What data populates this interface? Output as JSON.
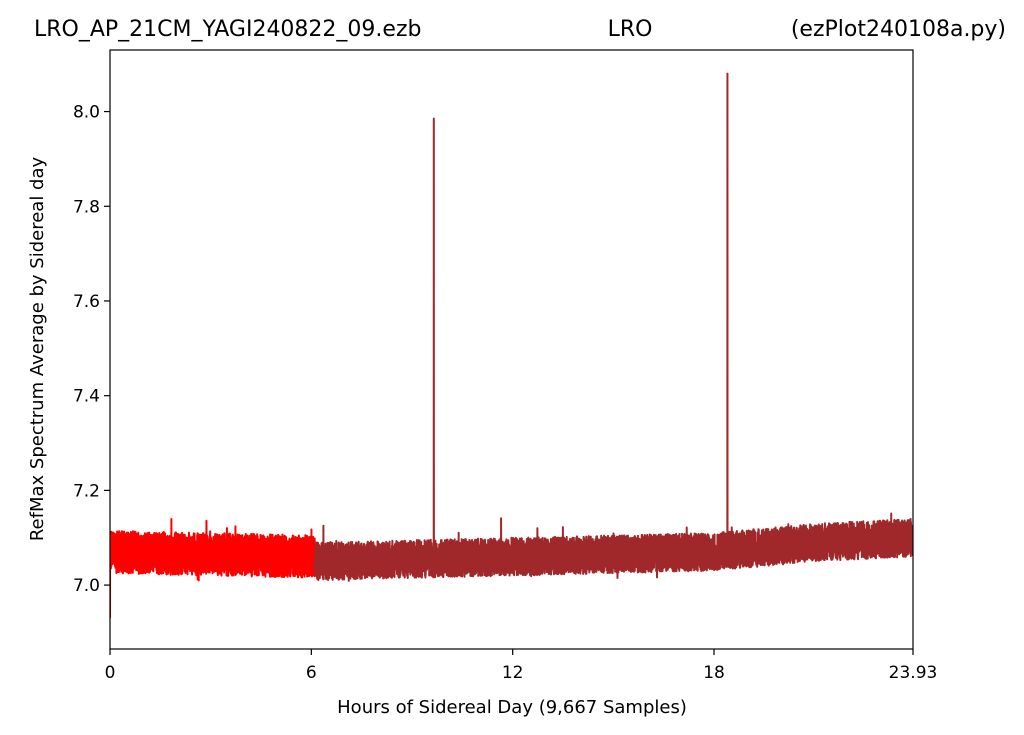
{
  "chart_data": {
    "type": "line",
    "title_parts": {
      "left": "LRO_AP_21CM_YAGI240822_09.ezb",
      "center": "LRO",
      "right": "(ezPlot240108a.py)"
    },
    "xlabel": "Hours of Sidereal Day  (9,667 Samples)",
    "ylabel": "RefMax Spectrum Average by Sidereal day",
    "xlim": [
      0,
      23.93
    ],
    "ylim": [
      6.865,
      8.13
    ],
    "x_ticks": [
      0,
      6,
      12,
      18,
      23.93
    ],
    "x_tick_labels": [
      "0",
      "6",
      "12",
      "18",
      "23.93"
    ],
    "y_ticks": [
      7.0,
      7.2,
      7.4,
      7.6,
      7.8,
      8.0
    ],
    "y_tick_labels": [
      "7.0",
      "7.2",
      "7.4",
      "7.6",
      "7.8",
      "8.0"
    ],
    "grid": false,
    "series": [
      {
        "color": "#ff0000",
        "x_range": [
          0,
          6.1
        ],
        "baseline": [
          [
            0,
            7.07
          ],
          [
            6.1,
            7.06
          ]
        ],
        "noise_amplitude": 0.045,
        "min_dip": 6.93
      },
      {
        "color": "#a0282a",
        "x_range": [
          6.1,
          23.93
        ],
        "baseline": [
          [
            6.1,
            7.05
          ],
          [
            12,
            7.06
          ],
          [
            18,
            7.07
          ],
          [
            21,
            7.09
          ],
          [
            23.93,
            7.1
          ]
        ],
        "noise_amplitude": 0.04,
        "spikes": [
          {
            "x": 9.65,
            "y": 7.985
          },
          {
            "x": 18.4,
            "y": 8.08
          }
        ]
      }
    ]
  }
}
